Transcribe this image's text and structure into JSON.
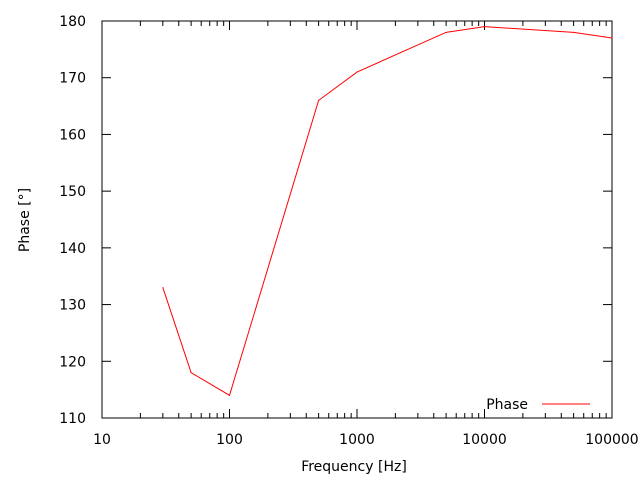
{
  "chart_data": {
    "type": "line",
    "title": "",
    "xlabel": "Frequency [Hz]",
    "ylabel": "Phase [°]",
    "xscale": "log",
    "xlim": [
      10,
      100000
    ],
    "ylim": [
      110,
      180
    ],
    "xticks": [
      "10",
      "100",
      "1000",
      "10000",
      "100000"
    ],
    "yticks": [
      "110",
      "120",
      "130",
      "140",
      "150",
      "160",
      "170",
      "180"
    ],
    "grid": false,
    "legend": "bottom-right",
    "series": [
      {
        "name": "Phase",
        "color": "#ff0000",
        "x": [
          30,
          50,
          100,
          500,
          1000,
          5000,
          10000,
          50000,
          100000
        ],
        "y": [
          133,
          118,
          114,
          166,
          171,
          178,
          179,
          178,
          177
        ]
      }
    ]
  }
}
